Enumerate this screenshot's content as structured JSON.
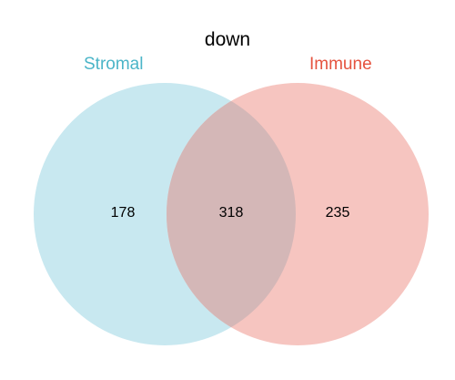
{
  "title": "down",
  "sets": [
    {
      "label": "Stromal",
      "color": "#4bb5c8",
      "fill": "#c8e8f0"
    },
    {
      "label": "Immune",
      "color": "#e5533f",
      "fill": "#f6c5c0"
    }
  ],
  "counts": {
    "only_a": "178",
    "intersection": "318",
    "only_b": "235"
  },
  "intersection_fill": "#d4b7b7"
}
